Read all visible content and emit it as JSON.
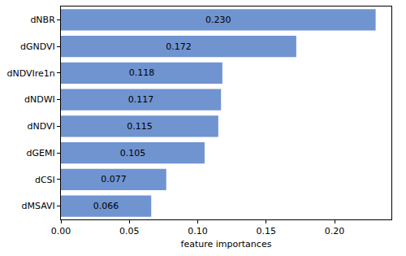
{
  "chart_data": {
    "type": "bar",
    "orientation": "horizontal",
    "x_label": "feature importances",
    "categories": [
      "dNBR",
      "dGNDVI",
      "dNDVIre1n",
      "dNDWI",
      "dNDVI",
      "dGEMI",
      "dCSI",
      "dMSAVI"
    ],
    "values": [
      0.23,
      0.172,
      0.118,
      0.117,
      0.115,
      0.105,
      0.077,
      0.066
    ],
    "value_labels": [
      "0.230",
      "0.172",
      "0.118",
      "0.117",
      "0.115",
      "0.105",
      "0.077",
      "0.066"
    ],
    "data_labels": true,
    "color": "#7094d0",
    "xlim": [
      0,
      0.2415
    ],
    "xticks": [
      {
        "value": 0,
        "label": "0.00"
      },
      0.05,
      {
        "value": 0.1,
        "label": "0.10"
      },
      0.15,
      {
        "value": 0.2,
        "label": "0.20"
      }
    ],
    "grid": false
  }
}
